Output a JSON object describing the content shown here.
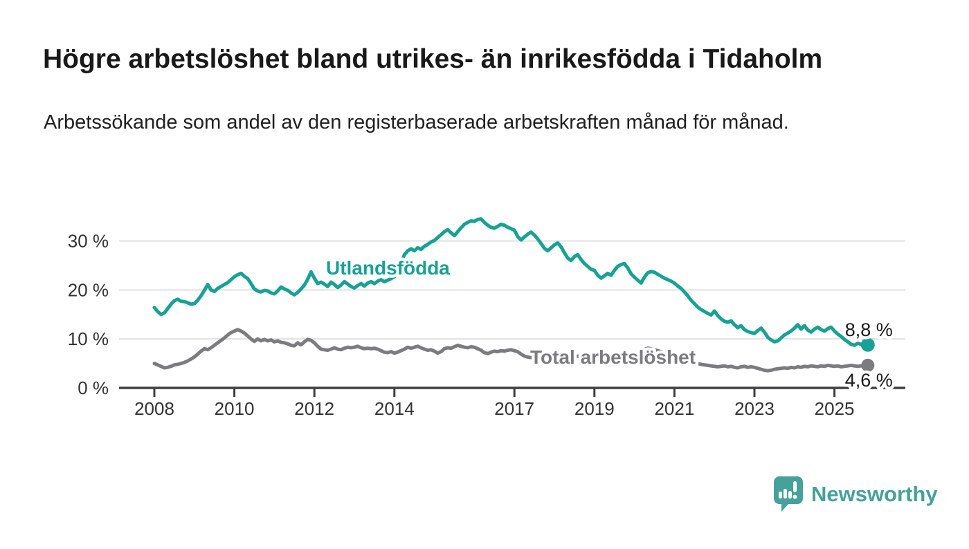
{
  "header": {
    "title": "Högre arbetslöshet bland utrikes- än inrikesfödda i Tidaholm",
    "subtitle": "Arbetssökande som andel av den registerbaserade arbetskraften månad för månad."
  },
  "footer": {
    "brand_name": "Newsworthy",
    "brand_color": "#45a19a",
    "logo_icon": "speech-bubble-bar-chart-icon"
  },
  "chart_data": {
    "type": "line",
    "title": "Högre arbetslöshet bland utrikes- än inrikesfödda i Tidaholm",
    "subtitle": "Arbetssökande som andel av den registerbaserade arbetskraften månad för månad.",
    "x_unit": "month",
    "x_range": {
      "start_year": 2008,
      "start_month": 1,
      "end_year": 2025,
      "end_month": 11
    },
    "x_ticks": [
      2008,
      2010,
      2012,
      2014,
      2017,
      2019,
      2021,
      2023,
      2025
    ],
    "y_ticks": [
      0,
      10,
      20,
      30
    ],
    "y_tick_suffix": " %",
    "ylim": [
      0,
      36.5
    ],
    "grid": true,
    "legend_position": "inline-labels",
    "axis_color": "#3f3f3f",
    "grid_color": "#e0e0e0",
    "tick_text_color": "#333333",
    "value_label_color": "#1a1a1a",
    "series": [
      {
        "name": "Utlandsfödda",
        "color": "#18a195",
        "end_value_label": "8,8 %",
        "end_value": 8.8,
        "values": [
          16.4,
          15.6,
          15.0,
          15.3,
          16.2,
          17.1,
          17.8,
          18.1,
          17.7,
          17.6,
          17.4,
          17.1,
          17.2,
          17.9,
          18.8,
          19.9,
          21.1,
          20.0,
          19.7,
          20.3,
          20.7,
          21.1,
          21.5,
          22.1,
          22.7,
          23.1,
          23.4,
          22.8,
          22.3,
          21.3,
          20.2,
          19.8,
          19.6,
          19.9,
          19.8,
          19.4,
          19.2,
          19.8,
          20.6,
          20.2,
          19.9,
          19.4,
          19.0,
          19.5,
          20.2,
          21.0,
          22.2,
          23.7,
          22.4,
          21.3,
          21.6,
          21.2,
          20.7,
          21.6,
          21.1,
          20.5,
          21.0,
          21.7,
          21.2,
          20.7,
          20.4,
          20.9,
          21.3,
          20.8,
          21.4,
          21.7,
          21.3,
          21.8,
          22.1,
          21.7,
          22.0,
          22.3,
          22.7,
          23.8,
          25.5,
          27.2,
          28.0,
          28.4,
          28.0,
          28.6,
          28.3,
          28.9,
          29.3,
          29.8,
          30.1,
          30.7,
          31.3,
          31.9,
          32.3,
          31.7,
          31.1,
          31.9,
          32.7,
          33.4,
          33.8,
          34.1,
          34.0,
          34.4,
          34.5,
          33.8,
          33.2,
          32.8,
          32.6,
          33.0,
          33.4,
          33.2,
          32.8,
          32.5,
          32.2,
          30.9,
          30.2,
          30.8,
          31.4,
          31.8,
          31.2,
          30.4,
          29.5,
          28.5,
          28.0,
          28.6,
          29.2,
          29.6,
          28.8,
          27.6,
          26.5,
          26.0,
          26.8,
          27.2,
          26.2,
          25.4,
          24.8,
          24.2,
          24.0,
          23.0,
          22.4,
          22.9,
          23.4,
          23.0,
          24.0,
          24.8,
          25.2,
          25.4,
          24.5,
          23.3,
          22.6,
          22.0,
          21.4,
          22.6,
          23.5,
          23.8,
          23.6,
          23.2,
          22.8,
          22.4,
          22.1,
          21.8,
          21.4,
          20.8,
          20.3,
          19.6,
          18.8,
          17.9,
          17.2,
          16.5,
          16.0,
          15.6,
          15.2,
          14.9,
          15.7,
          14.8,
          14.1,
          13.6,
          13.4,
          13.7,
          12.9,
          12.3,
          12.7,
          11.9,
          11.5,
          11.3,
          11.1,
          11.7,
          12.2,
          11.4,
          10.3,
          9.8,
          9.4,
          9.6,
          10.2,
          10.8,
          11.2,
          11.6,
          12.2,
          12.9,
          12.0,
          12.7,
          11.8,
          11.4,
          12.0,
          12.4,
          11.9,
          11.6,
          12.1,
          12.4,
          11.6,
          11.0,
          10.5,
          9.9,
          9.4,
          8.9,
          8.7,
          9.1,
          8.9,
          8.7,
          8.8
        ]
      },
      {
        "name": "Total arbetslöshet",
        "color": "#7b7b80",
        "end_value_label": "4,6 %",
        "end_value": 4.6,
        "values": [
          5.0,
          4.7,
          4.4,
          4.1,
          4.2,
          4.4,
          4.7,
          4.8,
          5.0,
          5.2,
          5.5,
          5.9,
          6.3,
          6.9,
          7.5,
          8.0,
          7.8,
          8.2,
          8.7,
          9.2,
          9.7,
          10.2,
          10.8,
          11.3,
          11.6,
          11.9,
          11.6,
          11.2,
          10.6,
          10.0,
          9.5,
          10.0,
          9.6,
          9.9,
          9.6,
          9.8,
          9.4,
          9.6,
          9.3,
          9.2,
          9.0,
          8.7,
          8.6,
          9.2,
          8.8,
          9.4,
          9.9,
          9.7,
          9.2,
          8.5,
          7.9,
          7.8,
          7.7,
          7.9,
          8.2,
          7.9,
          7.8,
          8.1,
          8.3,
          8.2,
          8.3,
          8.5,
          8.2,
          8.0,
          8.1,
          8.0,
          8.1,
          7.9,
          7.6,
          7.3,
          7.2,
          7.4,
          7.1,
          7.3,
          7.6,
          7.9,
          8.3,
          8.1,
          8.3,
          8.5,
          8.2,
          7.9,
          7.7,
          7.8,
          7.5,
          7.1,
          7.4,
          8.0,
          8.2,
          8.1,
          8.4,
          8.7,
          8.5,
          8.3,
          8.2,
          8.4,
          8.3,
          8.0,
          7.7,
          7.2,
          7.0,
          7.3,
          7.5,
          7.4,
          7.6,
          7.5,
          7.7,
          7.8,
          7.6,
          7.4,
          6.9,
          6.5,
          6.3,
          6.2,
          6.4,
          6.6,
          6.5,
          6.7,
          6.9,
          6.8,
          6.7,
          6.9,
          6.6,
          6.4,
          6.2,
          6.1,
          6.3,
          6.5,
          6.3,
          6.1,
          6.0,
          6.2,
          6.3,
          6.2,
          6.0,
          6.1,
          6.3,
          6.2,
          6.4,
          6.6,
          6.5,
          6.7,
          6.6,
          6.8,
          7.0,
          7.2,
          7.5,
          7.9,
          8.1,
          8.0,
          7.8,
          7.6,
          7.4,
          7.2,
          7.0,
          6.8,
          6.6,
          6.4,
          6.2,
          6.0,
          5.8,
          5.5,
          5.2,
          5.0,
          4.8,
          4.7,
          4.6,
          4.5,
          4.4,
          4.3,
          4.4,
          4.5,
          4.3,
          4.4,
          4.2,
          4.1,
          4.3,
          4.4,
          4.2,
          4.3,
          4.2,
          4.0,
          3.8,
          3.6,
          3.5,
          3.6,
          3.8,
          3.9,
          4.0,
          4.1,
          4.0,
          4.2,
          4.1,
          4.3,
          4.2,
          4.4,
          4.3,
          4.5,
          4.4,
          4.3,
          4.5,
          4.4,
          4.6,
          4.5,
          4.4,
          4.5,
          4.3,
          4.4,
          4.5,
          4.6,
          4.5,
          4.4,
          4.5,
          4.5,
          4.6
        ]
      }
    ]
  }
}
